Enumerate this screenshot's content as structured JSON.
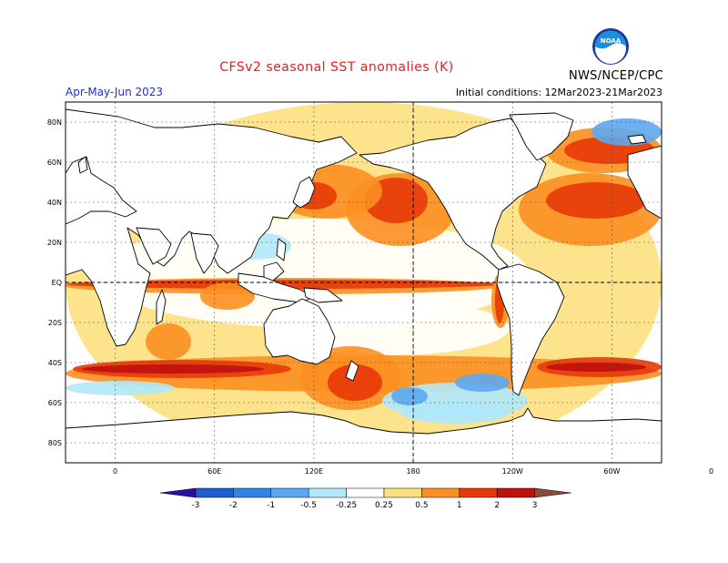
{
  "header": {
    "title": "CFSv2 seasonal SST anomalies (K)",
    "period": "Apr-May-Jun 2023",
    "initial_conditions": "Initial conditions: 12Mar2023-21Mar2023",
    "agency": "NWS/NCEP/CPC",
    "logo_text": "NOAA",
    "logo_icon": "noaa-logo-icon"
  },
  "map": {
    "lat_labels": [
      "80N",
      "60N",
      "40N",
      "20N",
      "EQ",
      "20S",
      "40S",
      "60S",
      "80S"
    ],
    "lon_labels": [
      "0",
      "60E",
      "120E",
      "180",
      "120W",
      "60W",
      "0"
    ]
  },
  "colorbar": {
    "levels": [
      "-3",
      "-2",
      "-1",
      "-0.5",
      "-0.25",
      "0.25",
      "0.5",
      "1",
      "2",
      "3"
    ],
    "colors": {
      "lt_m3": "#2a10a0",
      "m3_m2": "#1c5fd0",
      "m2_m1": "#2f86e8",
      "m1_m05": "#5ca8f0",
      "m05_m025": "#b0e8fa",
      "neutral": "#ffffff",
      "p025_p05": "#fde080",
      "p05_p1": "#fc8f20",
      "p1_p2": "#e83808",
      "p2_p3": "#c01010",
      "gt_p3": "#8a4a3a"
    }
  }
}
